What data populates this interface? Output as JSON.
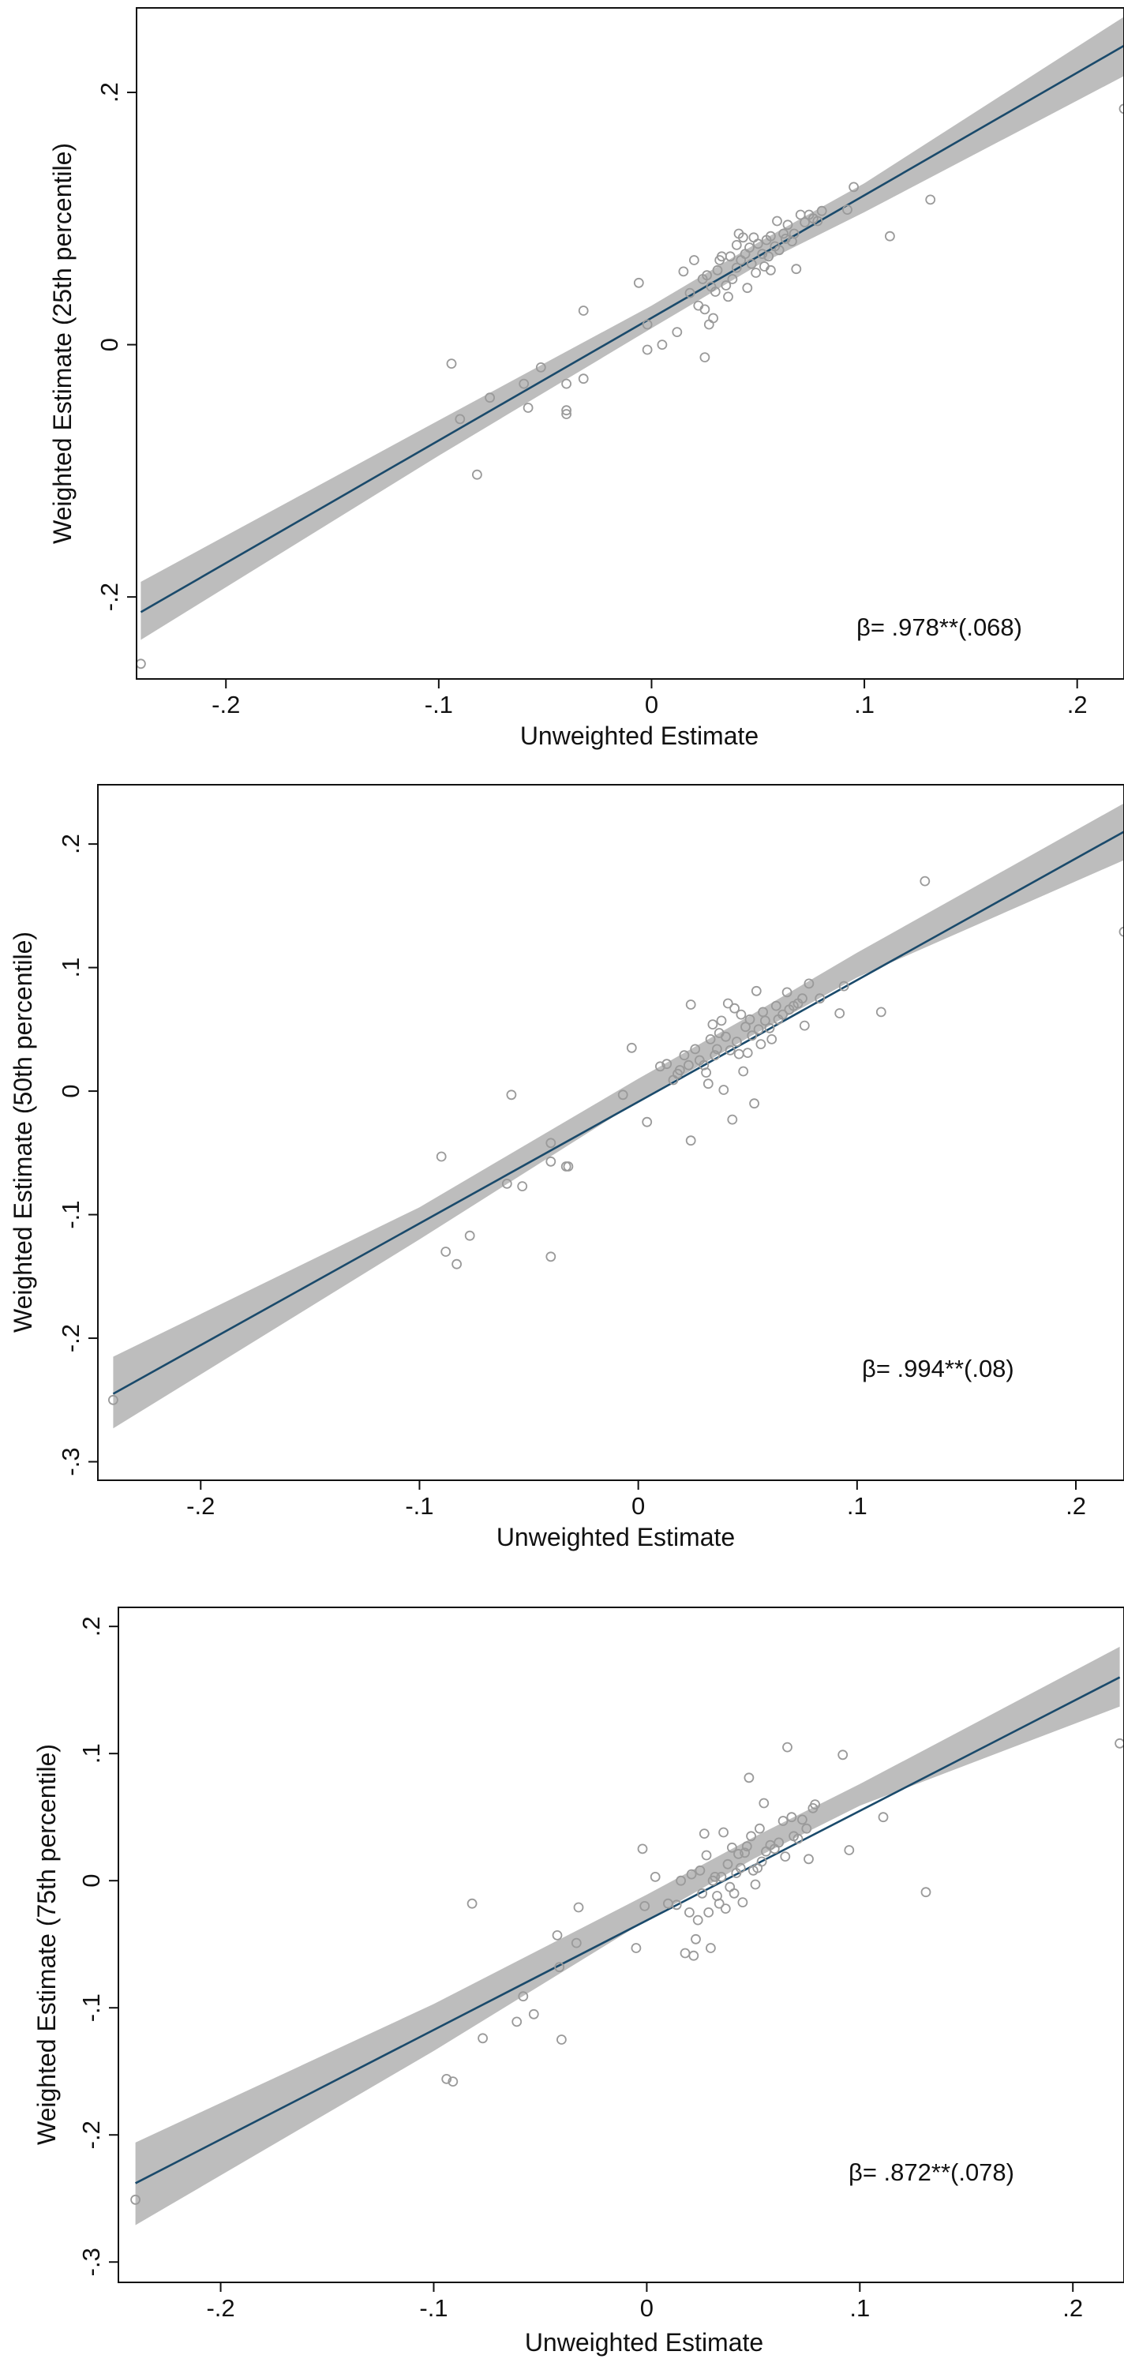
{
  "chart_data": [
    {
      "type": "scatter",
      "xlabel": "Unweighted Estimate",
      "ylabel": "Weighted Estimate (25th percentile)",
      "xticks": [
        -0.2,
        -0.1,
        0,
        0.1,
        0.2
      ],
      "xtick_labels": [
        "-.2",
        "-.1",
        "0",
        ".1",
        ".2"
      ],
      "yticks": [
        -0.2,
        0,
        0.2
      ],
      "ytick_labels": [
        "-.2",
        "0",
        ".2"
      ],
      "xlim": [
        -0.242,
        0.222
      ],
      "ylim": [
        -0.265,
        0.267
      ],
      "annotation": "β= .978**(.068)",
      "fit": {
        "x": [
          -0.24,
          0.222
        ],
        "y": [
          -0.212,
          0.237
        ]
      },
      "ci": {
        "x": [
          -0.24,
          -0.1,
          0.0,
          0.05,
          0.1,
          0.222
        ],
        "upper": [
          -0.188,
          -0.06,
          0.031,
          0.081,
          0.128,
          0.26
        ],
        "lower": [
          -0.234,
          -0.088,
          0.013,
          0.063,
          0.105,
          0.213
        ]
      },
      "grid": false,
      "points": [
        {
          "x": -0.24,
          "y": -0.253
        },
        {
          "x": -0.094,
          "y": -0.015
        },
        {
          "x": -0.09,
          "y": -0.059
        },
        {
          "x": -0.082,
          "y": -0.103
        },
        {
          "x": -0.076,
          "y": -0.042
        },
        {
          "x": -0.06,
          "y": -0.031
        },
        {
          "x": -0.058,
          "y": -0.05
        },
        {
          "x": -0.052,
          "y": -0.018
        },
        {
          "x": -0.04,
          "y": -0.031
        },
        {
          "x": -0.04,
          "y": -0.052
        },
        {
          "x": -0.04,
          "y": -0.055
        },
        {
          "x": -0.032,
          "y": -0.027
        },
        {
          "x": -0.032,
          "y": 0.027
        },
        {
          "x": -0.006,
          "y": 0.049
        },
        {
          "x": -0.002,
          "y": 0.016
        },
        {
          "x": -0.002,
          "y": -0.004
        },
        {
          "x": 0.005,
          "y": 0.0
        },
        {
          "x": 0.012,
          "y": 0.01
        },
        {
          "x": 0.015,
          "y": 0.058
        },
        {
          "x": 0.018,
          "y": 0.041
        },
        {
          "x": 0.02,
          "y": 0.067
        },
        {
          "x": 0.022,
          "y": 0.031
        },
        {
          "x": 0.024,
          "y": 0.052
        },
        {
          "x": 0.025,
          "y": 0.028
        },
        {
          "x": 0.025,
          "y": -0.01
        },
        {
          "x": 0.026,
          "y": 0.055
        },
        {
          "x": 0.027,
          "y": 0.016
        },
        {
          "x": 0.028,
          "y": 0.046
        },
        {
          "x": 0.029,
          "y": 0.021
        },
        {
          "x": 0.03,
          "y": 0.042
        },
        {
          "x": 0.031,
          "y": 0.059
        },
        {
          "x": 0.032,
          "y": 0.067
        },
        {
          "x": 0.033,
          "y": 0.07
        },
        {
          "x": 0.035,
          "y": 0.047
        },
        {
          "x": 0.036,
          "y": 0.038
        },
        {
          "x": 0.037,
          "y": 0.07
        },
        {
          "x": 0.038,
          "y": 0.052
        },
        {
          "x": 0.04,
          "y": 0.079
        },
        {
          "x": 0.04,
          "y": 0.061
        },
        {
          "x": 0.041,
          "y": 0.088
        },
        {
          "x": 0.042,
          "y": 0.067
        },
        {
          "x": 0.043,
          "y": 0.085
        },
        {
          "x": 0.044,
          "y": 0.072
        },
        {
          "x": 0.045,
          "y": 0.045
        },
        {
          "x": 0.046,
          "y": 0.077
        },
        {
          "x": 0.047,
          "y": 0.064
        },
        {
          "x": 0.048,
          "y": 0.085
        },
        {
          "x": 0.049,
          "y": 0.057
        },
        {
          "x": 0.05,
          "y": 0.08
        },
        {
          "x": 0.052,
          "y": 0.072
        },
        {
          "x": 0.053,
          "y": 0.062
        },
        {
          "x": 0.054,
          "y": 0.083
        },
        {
          "x": 0.055,
          "y": 0.07
        },
        {
          "x": 0.056,
          "y": 0.086
        },
        {
          "x": 0.056,
          "y": 0.059
        },
        {
          "x": 0.058,
          "y": 0.078
        },
        {
          "x": 0.059,
          "y": 0.098
        },
        {
          "x": 0.06,
          "y": 0.075
        },
        {
          "x": 0.062,
          "y": 0.088
        },
        {
          "x": 0.063,
          "y": 0.084
        },
        {
          "x": 0.064,
          "y": 0.095
        },
        {
          "x": 0.066,
          "y": 0.082
        },
        {
          "x": 0.067,
          "y": 0.088
        },
        {
          "x": 0.068,
          "y": 0.06
        },
        {
          "x": 0.07,
          "y": 0.103
        },
        {
          "x": 0.072,
          "y": 0.097
        },
        {
          "x": 0.074,
          "y": 0.103
        },
        {
          "x": 0.076,
          "y": 0.1
        },
        {
          "x": 0.078,
          "y": 0.098
        },
        {
          "x": 0.08,
          "y": 0.106
        },
        {
          "x": 0.092,
          "y": 0.107
        },
        {
          "x": 0.095,
          "y": 0.125
        },
        {
          "x": 0.112,
          "y": 0.086
        },
        {
          "x": 0.131,
          "y": 0.115
        },
        {
          "x": 0.222,
          "y": 0.187
        }
      ]
    },
    {
      "type": "scatter",
      "xlabel": "Unweighted Estimate",
      "ylabel": "Weighted Estimate (50th percentile)",
      "xticks": [
        -0.2,
        -0.1,
        0,
        0.1,
        0.2
      ],
      "xtick_labels": [
        "-.2",
        "-.1",
        "0",
        ".1",
        ".2"
      ],
      "yticks": [
        -0.3,
        -0.2,
        -0.1,
        0,
        0.1,
        0.2
      ],
      "ytick_labels": [
        "-.3",
        "-.2",
        "-.1",
        "0",
        ".1",
        ".2"
      ],
      "xlim": [
        -0.247,
        0.222
      ],
      "ylim": [
        -0.315,
        0.248
      ],
      "annotation": "β= .994**(.08)",
      "fit": {
        "x": [
          -0.24,
          0.222
        ],
        "y": [
          -0.245,
          0.21
        ]
      },
      "ci": {
        "x": [
          -0.24,
          -0.1,
          0.0,
          0.05,
          0.1,
          0.222
        ],
        "upper": [
          -0.215,
          -0.094,
          0.01,
          0.06,
          0.112,
          0.233
        ],
        "lower": [
          -0.273,
          -0.12,
          -0.008,
          0.043,
          0.092,
          0.187
        ]
      },
      "grid": false,
      "points": [
        {
          "x": -0.24,
          "y": -0.25
        },
        {
          "x": -0.09,
          "y": -0.053
        },
        {
          "x": -0.088,
          "y": -0.13
        },
        {
          "x": -0.083,
          "y": -0.14
        },
        {
          "x": -0.077,
          "y": -0.117
        },
        {
          "x": -0.06,
          "y": -0.075
        },
        {
          "x": -0.058,
          "y": -0.003
        },
        {
          "x": -0.053,
          "y": -0.077
        },
        {
          "x": -0.04,
          "y": -0.042
        },
        {
          "x": -0.04,
          "y": -0.057
        },
        {
          "x": -0.04,
          "y": -0.134
        },
        {
          "x": -0.033,
          "y": -0.061
        },
        {
          "x": -0.032,
          "y": -0.061
        },
        {
          "x": -0.007,
          "y": -0.003
        },
        {
          "x": -0.003,
          "y": 0.035
        },
        {
          "x": 0.004,
          "y": -0.025
        },
        {
          "x": 0.01,
          "y": 0.02
        },
        {
          "x": 0.013,
          "y": 0.022
        },
        {
          "x": 0.016,
          "y": 0.009
        },
        {
          "x": 0.018,
          "y": 0.014
        },
        {
          "x": 0.019,
          "y": 0.017
        },
        {
          "x": 0.021,
          "y": 0.029
        },
        {
          "x": 0.023,
          "y": 0.021
        },
        {
          "x": 0.024,
          "y": 0.07
        },
        {
          "x": 0.024,
          "y": -0.04
        },
        {
          "x": 0.026,
          "y": 0.034
        },
        {
          "x": 0.028,
          "y": 0.025
        },
        {
          "x": 0.03,
          "y": 0.021
        },
        {
          "x": 0.031,
          "y": 0.015
        },
        {
          "x": 0.032,
          "y": 0.006
        },
        {
          "x": 0.033,
          "y": 0.042
        },
        {
          "x": 0.034,
          "y": 0.054
        },
        {
          "x": 0.035,
          "y": 0.029
        },
        {
          "x": 0.036,
          "y": 0.034
        },
        {
          "x": 0.037,
          "y": 0.047
        },
        {
          "x": 0.038,
          "y": 0.057
        },
        {
          "x": 0.039,
          "y": 0.001
        },
        {
          "x": 0.04,
          "y": 0.044
        },
        {
          "x": 0.041,
          "y": 0.071
        },
        {
          "x": 0.042,
          "y": 0.033
        },
        {
          "x": 0.043,
          "y": -0.023
        },
        {
          "x": 0.044,
          "y": 0.067
        },
        {
          "x": 0.045,
          "y": 0.04
        },
        {
          "x": 0.046,
          "y": 0.03
        },
        {
          "x": 0.047,
          "y": 0.062
        },
        {
          "x": 0.048,
          "y": 0.016
        },
        {
          "x": 0.049,
          "y": 0.052
        },
        {
          "x": 0.05,
          "y": 0.031
        },
        {
          "x": 0.051,
          "y": 0.058
        },
        {
          "x": 0.052,
          "y": 0.045
        },
        {
          "x": 0.053,
          "y": -0.01
        },
        {
          "x": 0.054,
          "y": 0.081
        },
        {
          "x": 0.055,
          "y": 0.05
        },
        {
          "x": 0.056,
          "y": 0.038
        },
        {
          "x": 0.057,
          "y": 0.064
        },
        {
          "x": 0.058,
          "y": 0.057
        },
        {
          "x": 0.06,
          "y": 0.051
        },
        {
          "x": 0.061,
          "y": 0.042
        },
        {
          "x": 0.063,
          "y": 0.069
        },
        {
          "x": 0.064,
          "y": 0.058
        },
        {
          "x": 0.066,
          "y": 0.062
        },
        {
          "x": 0.068,
          "y": 0.08
        },
        {
          "x": 0.069,
          "y": 0.066
        },
        {
          "x": 0.071,
          "y": 0.069
        },
        {
          "x": 0.073,
          "y": 0.071
        },
        {
          "x": 0.075,
          "y": 0.075
        },
        {
          "x": 0.076,
          "y": 0.053
        },
        {
          "x": 0.078,
          "y": 0.087
        },
        {
          "x": 0.083,
          "y": 0.075
        },
        {
          "x": 0.092,
          "y": 0.063
        },
        {
          "x": 0.094,
          "y": 0.085
        },
        {
          "x": 0.111,
          "y": 0.064
        },
        {
          "x": 0.131,
          "y": 0.17
        },
        {
          "x": 0.222,
          "y": 0.129
        }
      ]
    },
    {
      "type": "scatter",
      "xlabel": "Unweighted Estimate",
      "ylabel": "Weighted Estimate (75th percentile)",
      "xticks": [
        -0.2,
        -0.1,
        0,
        0.1,
        0.2
      ],
      "xtick_labels": [
        "-.2",
        "-.1",
        "0",
        ".1",
        ".2"
      ],
      "yticks": [
        -0.3,
        -0.2,
        -0.1,
        0,
        0.1,
        0.2
      ],
      "ytick_labels": [
        "-.3",
        "-.2",
        "-.1",
        "0",
        ".1",
        ".2"
      ],
      "xlim": [
        -0.248,
        0.224
      ],
      "ylim": [
        -0.316,
        0.215
      ],
      "annotation": "β= .872**(.078)",
      "fit": {
        "x": [
          -0.24,
          0.222
        ],
        "y": [
          -0.238,
          0.16
        ]
      },
      "ci": {
        "x": [
          -0.24,
          -0.1,
          0.0,
          0.05,
          0.1,
          0.222
        ],
        "upper": [
          -0.206,
          -0.097,
          -0.011,
          0.034,
          0.076,
          0.184
        ],
        "lower": [
          -0.271,
          -0.134,
          -0.031,
          0.017,
          0.059,
          0.137
        ]
      },
      "grid": false,
      "points": [
        {
          "x": -0.24,
          "y": -0.251
        },
        {
          "x": -0.094,
          "y": -0.156
        },
        {
          "x": -0.091,
          "y": -0.158
        },
        {
          "x": -0.082,
          "y": -0.018
        },
        {
          "x": -0.077,
          "y": -0.124
        },
        {
          "x": -0.061,
          "y": -0.111
        },
        {
          "x": -0.058,
          "y": -0.091
        },
        {
          "x": -0.053,
          "y": -0.105
        },
        {
          "x": -0.042,
          "y": -0.043
        },
        {
          "x": -0.041,
          "y": -0.068
        },
        {
          "x": -0.04,
          "y": -0.125
        },
        {
          "x": -0.033,
          "y": -0.049
        },
        {
          "x": -0.032,
          "y": -0.021
        },
        {
          "x": -0.005,
          "y": -0.053
        },
        {
          "x": -0.002,
          "y": 0.025
        },
        {
          "x": -0.001,
          "y": -0.02
        },
        {
          "x": 0.004,
          "y": 0.003
        },
        {
          "x": 0.01,
          "y": -0.018
        },
        {
          "x": 0.014,
          "y": -0.019
        },
        {
          "x": 0.016,
          "y": 0.0
        },
        {
          "x": 0.018,
          "y": -0.057
        },
        {
          "x": 0.02,
          "y": -0.025
        },
        {
          "x": 0.021,
          "y": 0.005
        },
        {
          "x": 0.022,
          "y": -0.059
        },
        {
          "x": 0.023,
          "y": -0.046
        },
        {
          "x": 0.024,
          "y": -0.031
        },
        {
          "x": 0.025,
          "y": 0.008
        },
        {
          "x": 0.026,
          "y": -0.01
        },
        {
          "x": 0.027,
          "y": 0.037
        },
        {
          "x": 0.028,
          "y": 0.02
        },
        {
          "x": 0.029,
          "y": -0.025
        },
        {
          "x": 0.03,
          "y": -0.053
        },
        {
          "x": 0.031,
          "y": 0.0
        },
        {
          "x": 0.032,
          "y": 0.003
        },
        {
          "x": 0.033,
          "y": -0.012
        },
        {
          "x": 0.034,
          "y": -0.018
        },
        {
          "x": 0.035,
          "y": 0.003
        },
        {
          "x": 0.036,
          "y": 0.038
        },
        {
          "x": 0.037,
          "y": -0.022
        },
        {
          "x": 0.038,
          "y": 0.013
        },
        {
          "x": 0.039,
          "y": -0.005
        },
        {
          "x": 0.04,
          "y": 0.026
        },
        {
          "x": 0.041,
          "y": -0.01
        },
        {
          "x": 0.042,
          "y": 0.006
        },
        {
          "x": 0.043,
          "y": 0.021
        },
        {
          "x": 0.044,
          "y": 0.01
        },
        {
          "x": 0.045,
          "y": -0.017
        },
        {
          "x": 0.046,
          "y": 0.022
        },
        {
          "x": 0.047,
          "y": 0.027
        },
        {
          "x": 0.048,
          "y": 0.081
        },
        {
          "x": 0.049,
          "y": 0.035
        },
        {
          "x": 0.05,
          "y": 0.008
        },
        {
          "x": 0.051,
          "y": -0.003
        },
        {
          "x": 0.052,
          "y": 0.01
        },
        {
          "x": 0.053,
          "y": 0.041
        },
        {
          "x": 0.054,
          "y": 0.015
        },
        {
          "x": 0.055,
          "y": 0.061
        },
        {
          "x": 0.056,
          "y": 0.023
        },
        {
          "x": 0.058,
          "y": 0.028
        },
        {
          "x": 0.06,
          "y": 0.025
        },
        {
          "x": 0.062,
          "y": 0.03
        },
        {
          "x": 0.064,
          "y": 0.047
        },
        {
          "x": 0.065,
          "y": 0.019
        },
        {
          "x": 0.066,
          "y": 0.105
        },
        {
          "x": 0.068,
          "y": 0.05
        },
        {
          "x": 0.069,
          "y": 0.035
        },
        {
          "x": 0.071,
          "y": 0.033
        },
        {
          "x": 0.073,
          "y": 0.048
        },
        {
          "x": 0.075,
          "y": 0.041
        },
        {
          "x": 0.076,
          "y": 0.017
        },
        {
          "x": 0.078,
          "y": 0.057
        },
        {
          "x": 0.079,
          "y": 0.06
        },
        {
          "x": 0.092,
          "y": 0.099
        },
        {
          "x": 0.095,
          "y": 0.024
        },
        {
          "x": 0.111,
          "y": 0.05
        },
        {
          "x": 0.131,
          "y": -0.009
        },
        {
          "x": 0.222,
          "y": 0.108
        }
      ]
    }
  ]
}
